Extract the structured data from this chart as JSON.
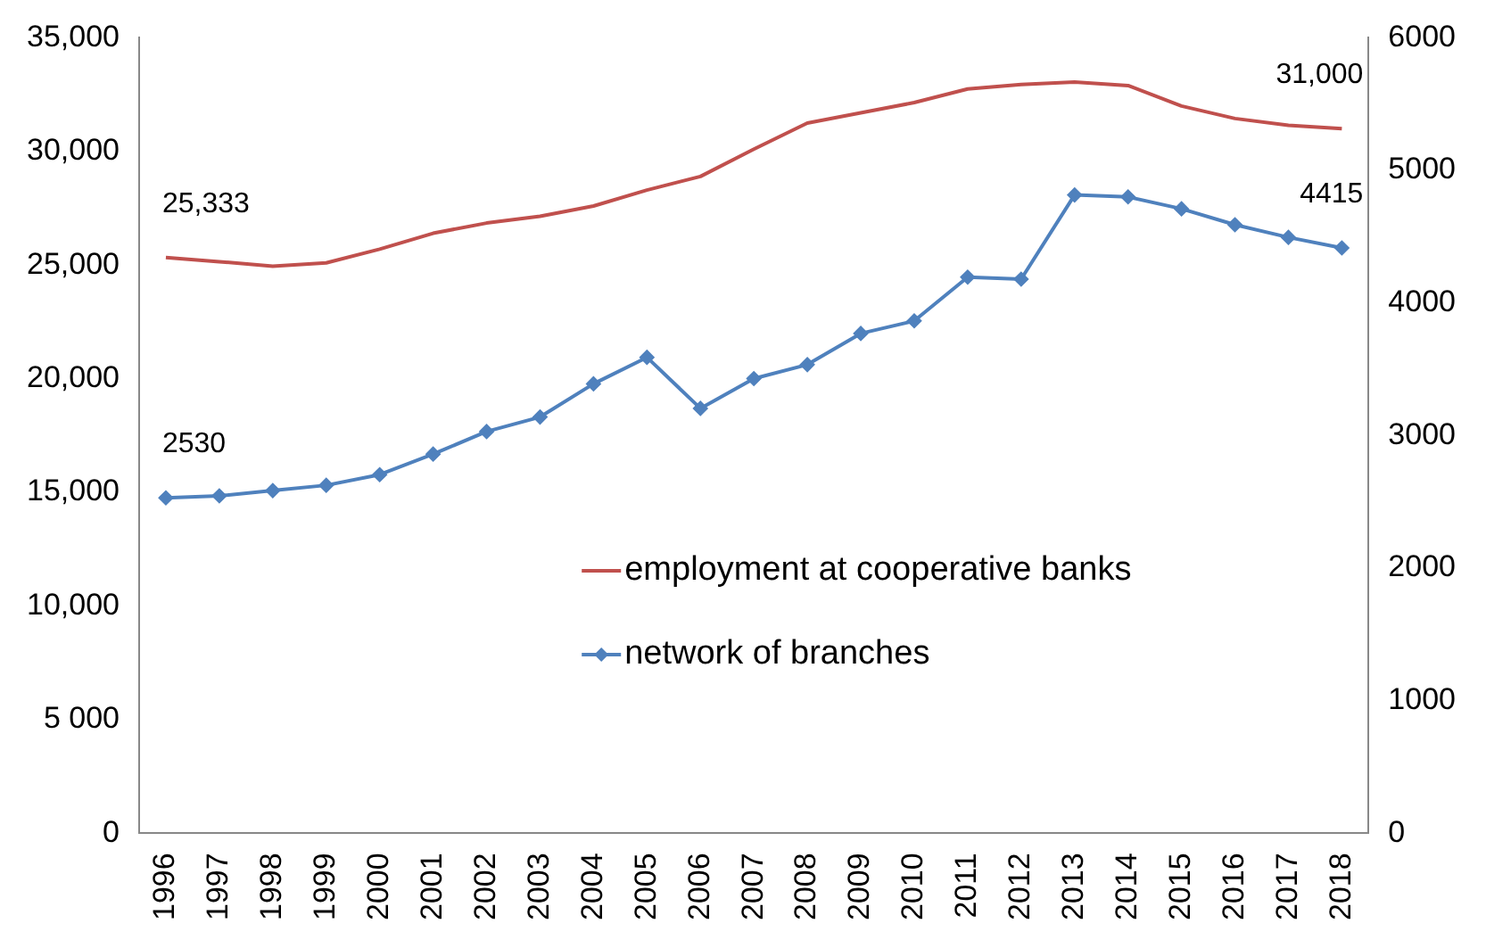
{
  "chart_data": {
    "type": "line",
    "categories": [
      "1996",
      "1997",
      "1998",
      "1999",
      "2000",
      "2001",
      "2002",
      "2003",
      "2004",
      "2005",
      "2006",
      "2007",
      "2008",
      "2009",
      "2010",
      "2011",
      "2012",
      "2013",
      "2014",
      "2015",
      "2016",
      "2017",
      "2018"
    ],
    "series": [
      {
        "name": "employment at cooperative banks",
        "color": "#c0504d",
        "marker": "none",
        "values": [
          25333,
          25150,
          24950,
          25100,
          25700,
          26400,
          26850,
          27150,
          27600,
          28300,
          28900,
          30100,
          31250,
          31700,
          32150,
          32750,
          32950,
          33050,
          32900,
          32000,
          31450,
          31150,
          31000
        ],
        "value_labels": [
          "25,333",
          null,
          null,
          null,
          null,
          null,
          null,
          null,
          null,
          null,
          null,
          null,
          null,
          null,
          null,
          null,
          null,
          null,
          null,
          null,
          null,
          null,
          "31,000"
        ]
      },
      {
        "name": "network of branches",
        "color": "#4f81bd",
        "marker": "diamond",
        "axis": "y2",
        "values": [
          2530,
          2545,
          2585,
          2625,
          2705,
          2860,
          3030,
          3140,
          3390,
          3590,
          3205,
          3430,
          3535,
          3770,
          3865,
          4195,
          4180,
          4815,
          4800,
          4710,
          4590,
          4495,
          4415
        ],
        "value_labels": [
          "2530",
          null,
          null,
          null,
          null,
          null,
          null,
          null,
          null,
          null,
          null,
          null,
          null,
          null,
          null,
          null,
          null,
          null,
          null,
          null,
          null,
          null,
          "4415"
        ]
      }
    ],
    "ylim": [
      0,
      35000
    ],
    "yticks": [
      {
        "value": 0,
        "label": "0"
      },
      {
        "value": 5000,
        "label": "5 000"
      },
      {
        "value": 10000,
        "label": "10,000"
      },
      {
        "value": 15000,
        "label": "15,000"
      },
      {
        "value": 20000,
        "label": "20,000"
      },
      {
        "value": 25000,
        "label": "25,000"
      },
      {
        "value": 30000,
        "label": "30,000"
      },
      {
        "value": 35000,
        "label": "35,000"
      }
    ],
    "y2lim": [
      0,
      6000
    ],
    "y2ticks": [
      0,
      1000,
      2000,
      3000,
      4000,
      5000,
      6000
    ],
    "legend": "right"
  }
}
